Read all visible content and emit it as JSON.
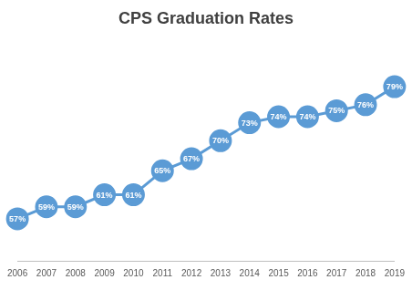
{
  "chart_data": {
    "type": "line",
    "title": "CPS Graduation Rates",
    "categories": [
      "2006",
      "2007",
      "2008",
      "2009",
      "2010",
      "2011",
      "2012",
      "2013",
      "2014",
      "2015",
      "2016",
      "2017",
      "2018",
      "2019"
    ],
    "values": [
      57,
      59,
      59,
      61,
      61,
      65,
      67,
      70,
      73,
      74,
      74,
      75,
      76,
      79
    ],
    "value_labels": [
      "57%",
      "59%",
      "59%",
      "61%",
      "61%",
      "65%",
      "67%",
      "70%",
      "73%",
      "74%",
      "74%",
      "75%",
      "76%",
      "79%"
    ],
    "color": "#5b9bd5",
    "marker": "circle",
    "ylim": [
      50,
      85
    ],
    "grid": false,
    "data_labels": true,
    "tick_labels": "x"
  }
}
